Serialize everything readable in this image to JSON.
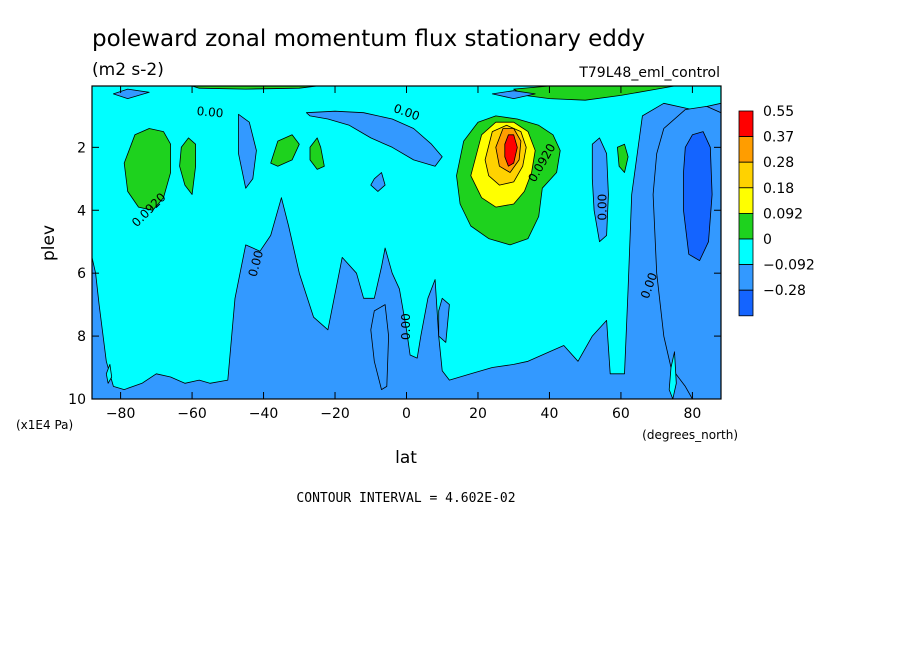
{
  "chart_data": {
    "type": "heatmap",
    "subtype": "filled-contour",
    "title": "poleward zonal momentum flux stationary eddy",
    "units": "(m2 s-2)",
    "run_label": "T79L48_eml_control",
    "xlabel": "lat",
    "x_units": "(degrees_north)",
    "ylabel": "plev",
    "y_units": "(x1E4 Pa)",
    "xlim": [
      -88,
      88
    ],
    "ylim": [
      10,
      0.05
    ],
    "x_ticks": [
      -80,
      -60,
      -40,
      -20,
      0,
      20,
      40,
      60,
      80
    ],
    "x_tick_labels": [
      "−80",
      "−60",
      "−40",
      "−20",
      "0",
      "20",
      "40",
      "60",
      "80"
    ],
    "y_ticks": [
      2,
      4,
      6,
      8,
      10
    ],
    "y_tick_labels": [
      "2",
      "4",
      "6",
      "8",
      "10"
    ],
    "contour_interval_text": "CONTOUR INTERVAL = 4.602E-02",
    "contour_labels": [
      {
        "text": "0.00",
        "lat": -55,
        "plev": 0.9,
        "rotate": 5
      },
      {
        "text": "0.00",
        "lat": 0,
        "plev": 0.9,
        "rotate": 20
      },
      {
        "text": "0.0920",
        "lat": -72,
        "plev": 4.0,
        "rotate": -45
      },
      {
        "text": "0.0920",
        "lat": 38,
        "plev": 2.5,
        "rotate": -60
      },
      {
        "text": "0.00",
        "lat": 55,
        "plev": 3.9,
        "rotate": -90
      },
      {
        "text": "0.00",
        "lat": -42,
        "plev": 5.7,
        "rotate": -75
      },
      {
        "text": "0.00",
        "lat": 0,
        "plev": 7.7,
        "rotate": -90
      },
      {
        "text": "0.00",
        "lat": 68,
        "plev": 6.4,
        "rotate": -70
      }
    ],
    "legend": {
      "placement": "right",
      "levels": [
        "0.55",
        "0.37",
        "0.28",
        "0.18",
        "0.092",
        "0",
        "−0.092",
        "−0.28"
      ],
      "colors": [
        "#ff0000",
        "#ff9d00",
        "#ffd200",
        "#ffff00",
        "#1ed21e",
        "#00ffff",
        "#3399ff",
        "#1464ff"
      ]
    },
    "background_color": "#3399ff",
    "regions": [
      {
        "level": "0",
        "color": "#00ffff",
        "points": [
          [
            -88,
            0.05
          ],
          [
            88,
            0.05
          ],
          [
            88,
            0.6
          ],
          [
            80,
            0.8
          ],
          [
            72,
            0.6
          ],
          [
            66,
            1.0
          ],
          [
            63,
            3.5
          ],
          [
            62,
            6.5
          ],
          [
            61,
            9.2
          ],
          [
            57,
            9.2
          ],
          [
            56,
            7.5
          ],
          [
            52,
            8.0
          ],
          [
            48,
            8.8
          ],
          [
            44,
            8.3
          ],
          [
            40,
            8.5
          ],
          [
            34,
            8.8
          ],
          [
            30,
            8.9
          ],
          [
            24,
            9.0
          ],
          [
            18,
            9.2
          ],
          [
            12,
            9.4
          ],
          [
            10,
            9.1
          ],
          [
            9,
            8.0
          ],
          [
            8,
            6.2
          ],
          [
            6,
            6.8
          ],
          [
            4,
            8.0
          ],
          [
            3,
            8.7
          ],
          [
            1,
            8.6
          ],
          [
            0,
            7.8
          ],
          [
            -2,
            6.5
          ],
          [
            -4,
            6.0
          ],
          [
            -6,
            5.2
          ],
          [
            -7,
            5.8
          ],
          [
            -9,
            6.8
          ],
          [
            -12,
            6.8
          ],
          [
            -14,
            6.0
          ],
          [
            -18,
            5.5
          ],
          [
            -22,
            7.8
          ],
          [
            -26,
            7.4
          ],
          [
            -30,
            6.0
          ],
          [
            -33,
            4.5
          ],
          [
            -35,
            3.6
          ],
          [
            -38,
            4.8
          ],
          [
            -41,
            5.3
          ],
          [
            -45,
            5.1
          ],
          [
            -48,
            6.8
          ],
          [
            -50,
            9.4
          ],
          [
            -55,
            9.5
          ],
          [
            -58,
            9.4
          ],
          [
            -62,
            9.5
          ],
          [
            -66,
            9.3
          ],
          [
            -70,
            9.2
          ],
          [
            -74,
            9.5
          ],
          [
            -79,
            9.7
          ],
          [
            -82,
            9.6
          ],
          [
            -84,
            8.8
          ],
          [
            -86,
            7.0
          ],
          [
            -87,
            6.0
          ],
          [
            -88,
            5.5
          ]
        ]
      },
      {
        "level": "-0.092",
        "color": "#3399ff",
        "points": [
          [
            -28,
            0.9
          ],
          [
            -20,
            0.85
          ],
          [
            -12,
            0.9
          ],
          [
            -4,
            1.1
          ],
          [
            2,
            1.4
          ],
          [
            7,
            1.9
          ],
          [
            10,
            2.3
          ],
          [
            8,
            2.6
          ],
          [
            2,
            2.4
          ],
          [
            -4,
            2.0
          ],
          [
            -10,
            1.7
          ],
          [
            -16,
            1.3
          ],
          [
            -22,
            1.1
          ],
          [
            -27,
            1.0
          ]
        ]
      },
      {
        "level": "-0.092",
        "color": "#3399ff",
        "points": [
          [
            -47,
            0.95
          ],
          [
            -44,
            1.2
          ],
          [
            -42,
            2.1
          ],
          [
            -43,
            3.0
          ],
          [
            -45,
            3.3
          ],
          [
            -47,
            2.2
          ]
        ]
      },
      {
        "level": "-0.092",
        "color": "#3399ff",
        "points": [
          [
            -9,
            3.0
          ],
          [
            -7,
            2.8
          ],
          [
            -6,
            3.2
          ],
          [
            -8,
            3.4
          ],
          [
            -10,
            3.2
          ]
        ]
      },
      {
        "level": "-0.092",
        "color": "#3399ff",
        "points": [
          [
            52,
            1.9
          ],
          [
            54,
            1.7
          ],
          [
            56,
            2.2
          ],
          [
            56.5,
            3.5
          ],
          [
            56,
            4.8
          ],
          [
            54,
            5.0
          ],
          [
            52.5,
            4.0
          ],
          [
            52,
            3.0
          ]
        ]
      },
      {
        "level": "-0.092",
        "color": "#3399ff",
        "points": [
          [
            -9,
            7.2
          ],
          [
            -6,
            7.0
          ],
          [
            -5,
            8.0
          ],
          [
            -5.5,
            9.6
          ],
          [
            -7,
            9.7
          ],
          [
            -9,
            8.8
          ],
          [
            -10,
            7.8
          ]
        ]
      },
      {
        "level": "-0.092",
        "color": "#3399ff",
        "points": [
          [
            9,
            7.2
          ],
          [
            10,
            6.8
          ],
          [
            12,
            7.0
          ],
          [
            11,
            8.2
          ],
          [
            9,
            8.0
          ]
        ]
      },
      {
        "level": "-0.092",
        "color": "#3399ff",
        "points": [
          [
            72,
            1.4
          ],
          [
            78,
            0.8
          ],
          [
            84,
            0.7
          ],
          [
            88,
            0.9
          ],
          [
            88,
            10
          ],
          [
            80,
            10
          ],
          [
            78,
            9.6
          ],
          [
            74,
            9.0
          ],
          [
            72,
            8.0
          ],
          [
            70,
            6.0
          ],
          [
            69,
            3.5
          ],
          [
            70,
            2.2
          ]
        ]
      },
      {
        "level": "0",
        "color": "#00ffff",
        "points": [
          [
            -84,
            9.2
          ],
          [
            -83,
            8.9
          ],
          [
            -82.5,
            9.3
          ],
          [
            -83.5,
            9.5
          ]
        ]
      },
      {
        "level": "0",
        "color": "#00ffff",
        "points": [
          [
            74,
            9.0
          ],
          [
            75,
            8.5
          ],
          [
            75.5,
            9.5
          ],
          [
            74.5,
            10
          ],
          [
            73.5,
            9.7
          ]
        ]
      },
      {
        "level": "0.092",
        "color": "#1ed21e",
        "points": [
          [
            -79,
            2.5
          ],
          [
            -76,
            1.6
          ],
          [
            -72,
            1.4
          ],
          [
            -68,
            1.5
          ],
          [
            -66,
            1.9
          ],
          [
            -66,
            2.8
          ],
          [
            -68,
            3.6
          ],
          [
            -71,
            4.0
          ],
          [
            -75,
            3.9
          ],
          [
            -78,
            3.4
          ]
        ]
      },
      {
        "level": "0.092",
        "color": "#1ed21e",
        "points": [
          [
            -63,
            2.0
          ],
          [
            -61,
            1.7
          ],
          [
            -59,
            1.9
          ],
          [
            -59,
            2.6
          ],
          [
            -60,
            3.5
          ],
          [
            -62,
            3.2
          ],
          [
            -63.5,
            2.6
          ]
        ]
      },
      {
        "level": "0.092",
        "color": "#1ed21e",
        "points": [
          [
            -38,
            2.5
          ],
          [
            -36,
            1.8
          ],
          [
            -32,
            1.6
          ],
          [
            -30,
            1.9
          ],
          [
            -32,
            2.4
          ],
          [
            -36,
            2.6
          ]
        ]
      },
      {
        "level": "0.092",
        "color": "#1ed21e",
        "points": [
          [
            -27,
            2.0
          ],
          [
            -25,
            1.7
          ],
          [
            -24,
            2.0
          ],
          [
            -23,
            2.6
          ],
          [
            -25,
            2.7
          ],
          [
            -27,
            2.4
          ]
        ]
      },
      {
        "level": "0.092",
        "color": "#1ed21e",
        "points": [
          [
            14,
            2.9
          ],
          [
            16,
            1.8
          ],
          [
            20,
            1.2
          ],
          [
            25,
            1.0
          ],
          [
            31,
            1.1
          ],
          [
            37,
            1.3
          ],
          [
            41,
            1.6
          ],
          [
            43,
            2.1
          ],
          [
            42,
            2.8
          ],
          [
            38,
            3.3
          ],
          [
            37,
            4.2
          ],
          [
            34,
            4.9
          ],
          [
            29,
            5.1
          ],
          [
            23,
            4.9
          ],
          [
            18,
            4.5
          ],
          [
            15,
            3.8
          ]
        ]
      },
      {
        "level": "0.18",
        "color": "#ffff00",
        "points": [
          [
            18,
            2.9
          ],
          [
            21,
            1.6
          ],
          [
            25,
            1.2
          ],
          [
            30,
            1.2
          ],
          [
            34,
            1.5
          ],
          [
            36,
            2.1
          ],
          [
            35,
            2.8
          ],
          [
            33,
            3.4
          ],
          [
            30,
            3.8
          ],
          [
            25,
            3.9
          ],
          [
            21,
            3.6
          ]
        ]
      },
      {
        "level": "0.28",
        "color": "#ffd200",
        "points": [
          [
            22,
            2.4
          ],
          [
            24,
            1.5
          ],
          [
            28,
            1.3
          ],
          [
            32,
            1.5
          ],
          [
            33.5,
            2.0
          ],
          [
            32.5,
            2.6
          ],
          [
            30,
            3.1
          ],
          [
            26,
            3.2
          ],
          [
            23,
            2.9
          ]
        ]
      },
      {
        "level": "0.37",
        "color": "#ff9d00",
        "points": [
          [
            25,
            2.0
          ],
          [
            27,
            1.4
          ],
          [
            30,
            1.4
          ],
          [
            32,
            1.8
          ],
          [
            31.5,
            2.4
          ],
          [
            29,
            2.8
          ],
          [
            26,
            2.6
          ]
        ]
      },
      {
        "level": "0.55",
        "color": "#ff0000",
        "points": [
          [
            27.5,
            1.9
          ],
          [
            28.5,
            1.6
          ],
          [
            30,
            1.6
          ],
          [
            31,
            2.0
          ],
          [
            30,
            2.5
          ],
          [
            28.5,
            2.6
          ],
          [
            27.5,
            2.3
          ]
        ]
      },
      {
        "level": "0.092",
        "color": "#1ed21e",
        "points": [
          [
            59,
            2.0
          ],
          [
            61,
            1.9
          ],
          [
            62,
            2.3
          ],
          [
            61,
            2.8
          ],
          [
            59.5,
            2.6
          ]
        ]
      },
      {
        "level": "0.092",
        "color": "#1ed21e",
        "points": [
          [
            30,
            0.15
          ],
          [
            40,
            0.05
          ],
          [
            75,
            0.05
          ],
          [
            70,
            0.15
          ],
          [
            60,
            0.35
          ],
          [
            50,
            0.5
          ],
          [
            40,
            0.45
          ],
          [
            33,
            0.35
          ]
        ]
      },
      {
        "level": "0.092",
        "color": "#1ed21e",
        "points": [
          [
            -60,
            0.05
          ],
          [
            -25,
            0.05
          ],
          [
            -30,
            0.12
          ],
          [
            -45,
            0.15
          ],
          [
            -58,
            0.12
          ]
        ]
      },
      {
        "level": "-0.092",
        "color": "#3399ff",
        "points": [
          [
            -82,
            0.3
          ],
          [
            -78,
            0.15
          ],
          [
            -72,
            0.25
          ],
          [
            -78,
            0.45
          ]
        ]
      },
      {
        "level": "-0.092",
        "color": "#3399ff",
        "points": [
          [
            24,
            0.3
          ],
          [
            30,
            0.2
          ],
          [
            36,
            0.3
          ],
          [
            30,
            0.45
          ]
        ]
      },
      {
        "level": "-0.28",
        "color": "#1464ff",
        "points": [
          [
            78,
            2.0
          ],
          [
            80,
            1.6
          ],
          [
            83,
            1.5
          ],
          [
            85,
            2.0
          ],
          [
            85.5,
            3.5
          ],
          [
            84.5,
            5.0
          ],
          [
            82,
            5.6
          ],
          [
            79,
            5.4
          ],
          [
            77.5,
            4.0
          ],
          [
            77.5,
            2.8
          ]
        ]
      }
    ]
  }
}
